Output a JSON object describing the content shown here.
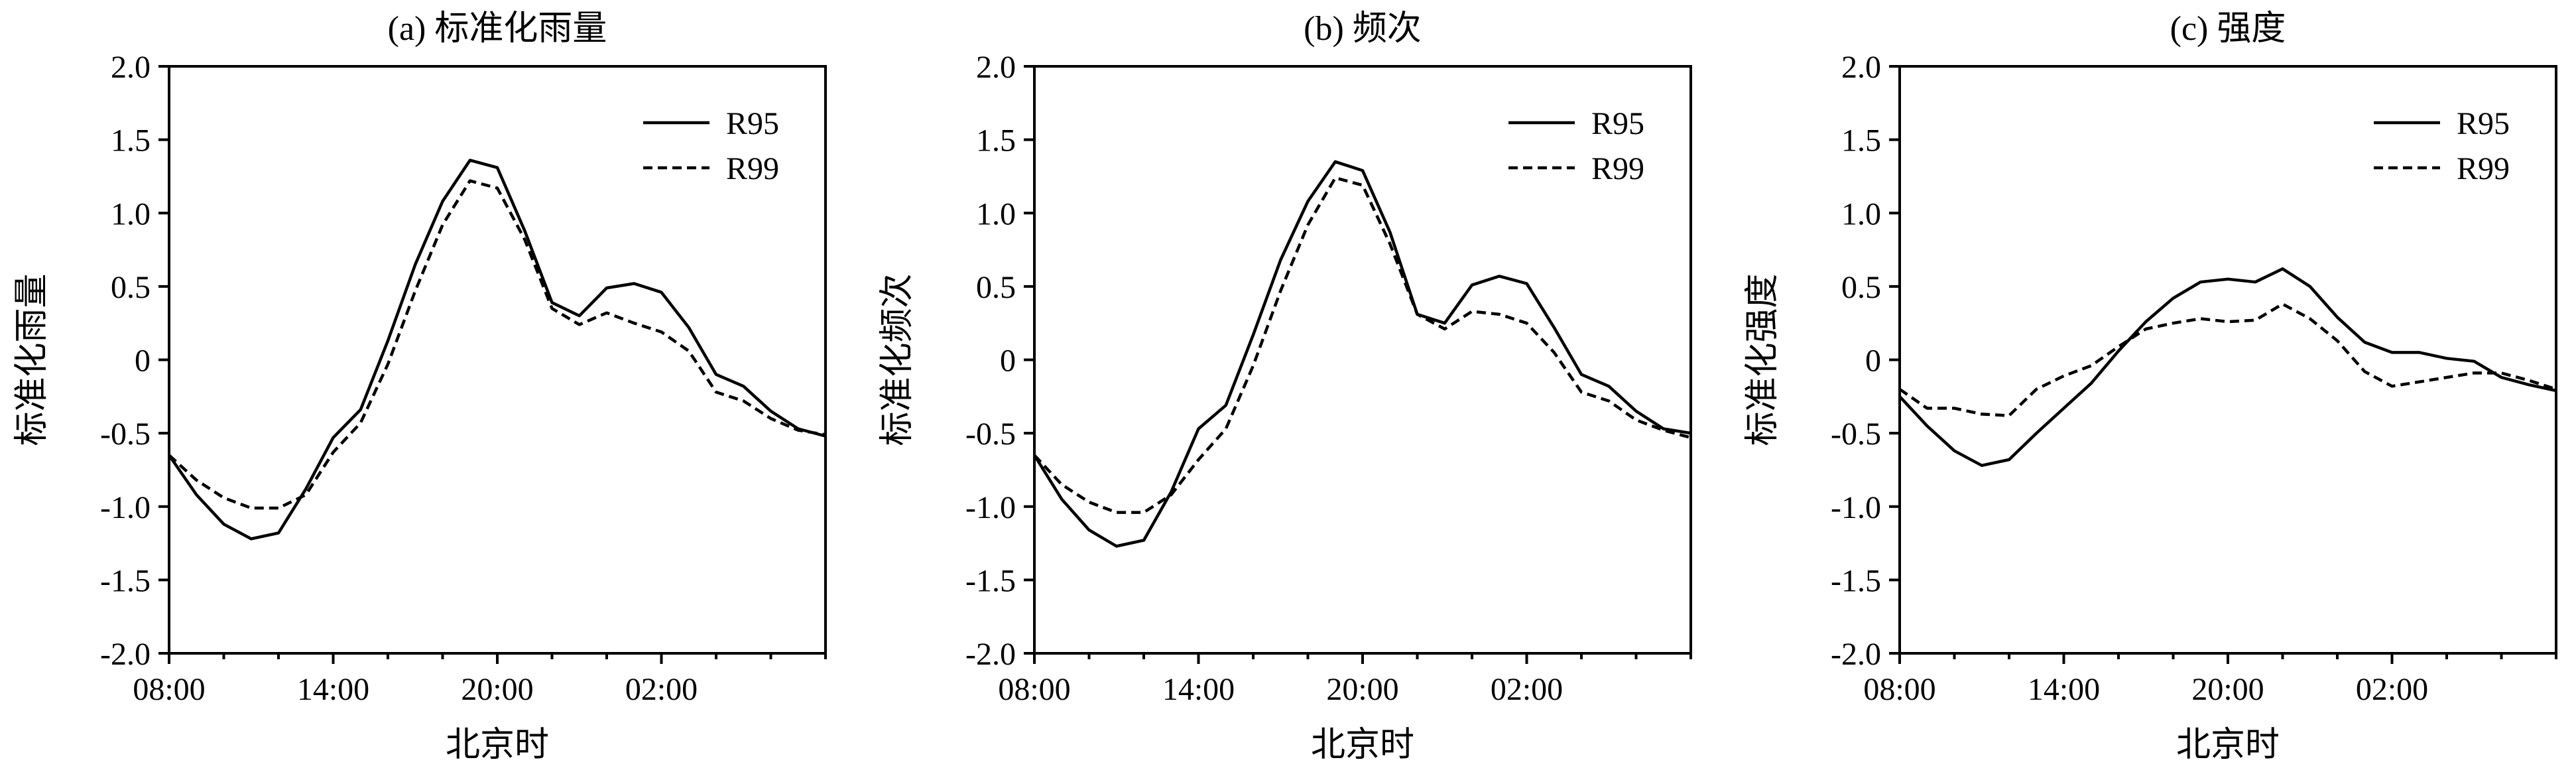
{
  "chart_data": [
    {
      "type": "line",
      "title": "(a) 标准化雨量",
      "xlabel": "北京时",
      "ylabel": "标准化雨量",
      "ylim": [
        -2.0,
        2.0
      ],
      "yticks": [
        "2.0",
        "1.5",
        "1.0",
        "0.5",
        "0",
        "-0.5",
        "-1.0",
        "-1.5",
        "-2.0"
      ],
      "xlim": [
        8,
        32
      ],
      "xticks": [
        {
          "x": 8,
          "label": "08:00"
        },
        {
          "x": 14,
          "label": "14:00"
        },
        {
          "x": 20,
          "label": "20:00"
        },
        {
          "x": 26,
          "label": "02:00"
        }
      ],
      "legend_position": "top-right",
      "series": [
        {
          "name": "R95",
          "style": "solid",
          "x": [
            8,
            9,
            10,
            11,
            12,
            13,
            14,
            15,
            16,
            17,
            18,
            19,
            20,
            21,
            22,
            23,
            24,
            25,
            26,
            27,
            28,
            29,
            30,
            31,
            32
          ],
          "values": [
            -0.65,
            -0.92,
            -1.12,
            -1.22,
            -1.18,
            -0.88,
            -0.53,
            -0.34,
            0.13,
            0.65,
            1.08,
            1.36,
            1.31,
            0.88,
            0.39,
            0.3,
            0.49,
            0.52,
            0.46,
            0.22,
            -0.1,
            -0.18,
            -0.35,
            -0.47,
            -0.52
          ]
        },
        {
          "name": "R99",
          "style": "dashed",
          "x": [
            8,
            9,
            10,
            11,
            12,
            13,
            14,
            15,
            16,
            17,
            18,
            19,
            20,
            21,
            22,
            23,
            24,
            25,
            26,
            27,
            28,
            29,
            30,
            31,
            32
          ],
          "values": [
            -0.65,
            -0.82,
            -0.94,
            -1.01,
            -1.01,
            -0.92,
            -0.63,
            -0.43,
            -0.03,
            0.47,
            0.92,
            1.22,
            1.17,
            0.82,
            0.35,
            0.24,
            0.32,
            0.25,
            0.19,
            0.06,
            -0.22,
            -0.28,
            -0.4,
            -0.48,
            -0.51
          ]
        }
      ]
    },
    {
      "type": "line",
      "title": "(b) 频次",
      "xlabel": "北京时",
      "ylabel": "标准化频次",
      "ylim": [
        -2.0,
        2.0
      ],
      "yticks": [
        "2.0",
        "1.5",
        "1.0",
        "0.5",
        "0",
        "-0.5",
        "-1.0",
        "-1.5",
        "-2.0"
      ],
      "xlim": [
        8,
        32
      ],
      "xticks": [
        {
          "x": 8,
          "label": "08:00"
        },
        {
          "x": 14,
          "label": "14:00"
        },
        {
          "x": 20,
          "label": "20:00"
        },
        {
          "x": 26,
          "label": "02:00"
        }
      ],
      "legend_position": "top-right",
      "series": [
        {
          "name": "R95",
          "style": "solid",
          "x": [
            8,
            9,
            10,
            11,
            12,
            13,
            14,
            15,
            16,
            17,
            18,
            19,
            20,
            21,
            22,
            23,
            24,
            25,
            26,
            27,
            28,
            29,
            30,
            31,
            32
          ],
          "values": [
            -0.65,
            -0.95,
            -1.16,
            -1.27,
            -1.23,
            -0.9,
            -0.47,
            -0.31,
            0.17,
            0.68,
            1.08,
            1.35,
            1.29,
            0.87,
            0.31,
            0.25,
            0.51,
            0.57,
            0.52,
            0.22,
            -0.1,
            -0.18,
            -0.35,
            -0.47,
            -0.5
          ]
        },
        {
          "name": "R99",
          "style": "dashed",
          "x": [
            8,
            9,
            10,
            11,
            12,
            13,
            14,
            15,
            16,
            17,
            18,
            19,
            20,
            21,
            22,
            23,
            24,
            25,
            26,
            27,
            28,
            29,
            30,
            31,
            32
          ],
          "values": [
            -0.65,
            -0.85,
            -0.97,
            -1.04,
            -1.04,
            -0.92,
            -0.68,
            -0.47,
            -0.04,
            0.47,
            0.92,
            1.24,
            1.19,
            0.79,
            0.31,
            0.21,
            0.33,
            0.31,
            0.25,
            0.05,
            -0.22,
            -0.28,
            -0.41,
            -0.48,
            -0.53
          ]
        }
      ]
    },
    {
      "type": "line",
      "title": "(c) 强度",
      "xlabel": "北京时",
      "ylabel": "标准化强度",
      "ylim": [
        -2.0,
        2.0
      ],
      "yticks": [
        "2.0",
        "1.5",
        "1.0",
        "0.5",
        "0",
        "-0.5",
        "-1.0",
        "-1.5",
        "-2.0"
      ],
      "xlim": [
        8,
        32
      ],
      "xticks": [
        {
          "x": 8,
          "label": "08:00"
        },
        {
          "x": 14,
          "label": "14:00"
        },
        {
          "x": 20,
          "label": "20:00"
        },
        {
          "x": 26,
          "label": "02:00"
        }
      ],
      "legend_position": "top-right",
      "series": [
        {
          "name": "R95",
          "style": "solid",
          "x": [
            8,
            9,
            10,
            11,
            12,
            13,
            14,
            15,
            16,
            17,
            18,
            19,
            20,
            21,
            22,
            23,
            24,
            25,
            26,
            27,
            28,
            29,
            30,
            31,
            32
          ],
          "values": [
            -0.25,
            -0.45,
            -0.62,
            -0.72,
            -0.68,
            -0.5,
            -0.33,
            -0.16,
            0.06,
            0.26,
            0.42,
            0.53,
            0.55,
            0.53,
            0.62,
            0.5,
            0.29,
            0.12,
            0.05,
            0.05,
            0.01,
            -0.01,
            -0.12,
            -0.17,
            -0.21
          ]
        },
        {
          "name": "R99",
          "style": "dashed",
          "x": [
            8,
            9,
            10,
            11,
            12,
            13,
            14,
            15,
            16,
            17,
            18,
            19,
            20,
            21,
            22,
            23,
            24,
            25,
            26,
            27,
            28,
            29,
            30,
            31,
            32
          ],
          "values": [
            -0.2,
            -0.33,
            -0.33,
            -0.37,
            -0.38,
            -0.2,
            -0.11,
            -0.04,
            0.09,
            0.21,
            0.25,
            0.28,
            0.26,
            0.27,
            0.38,
            0.28,
            0.13,
            -0.08,
            -0.18,
            -0.15,
            -0.12,
            -0.09,
            -0.09,
            -0.14,
            -0.2
          ]
        }
      ]
    }
  ]
}
